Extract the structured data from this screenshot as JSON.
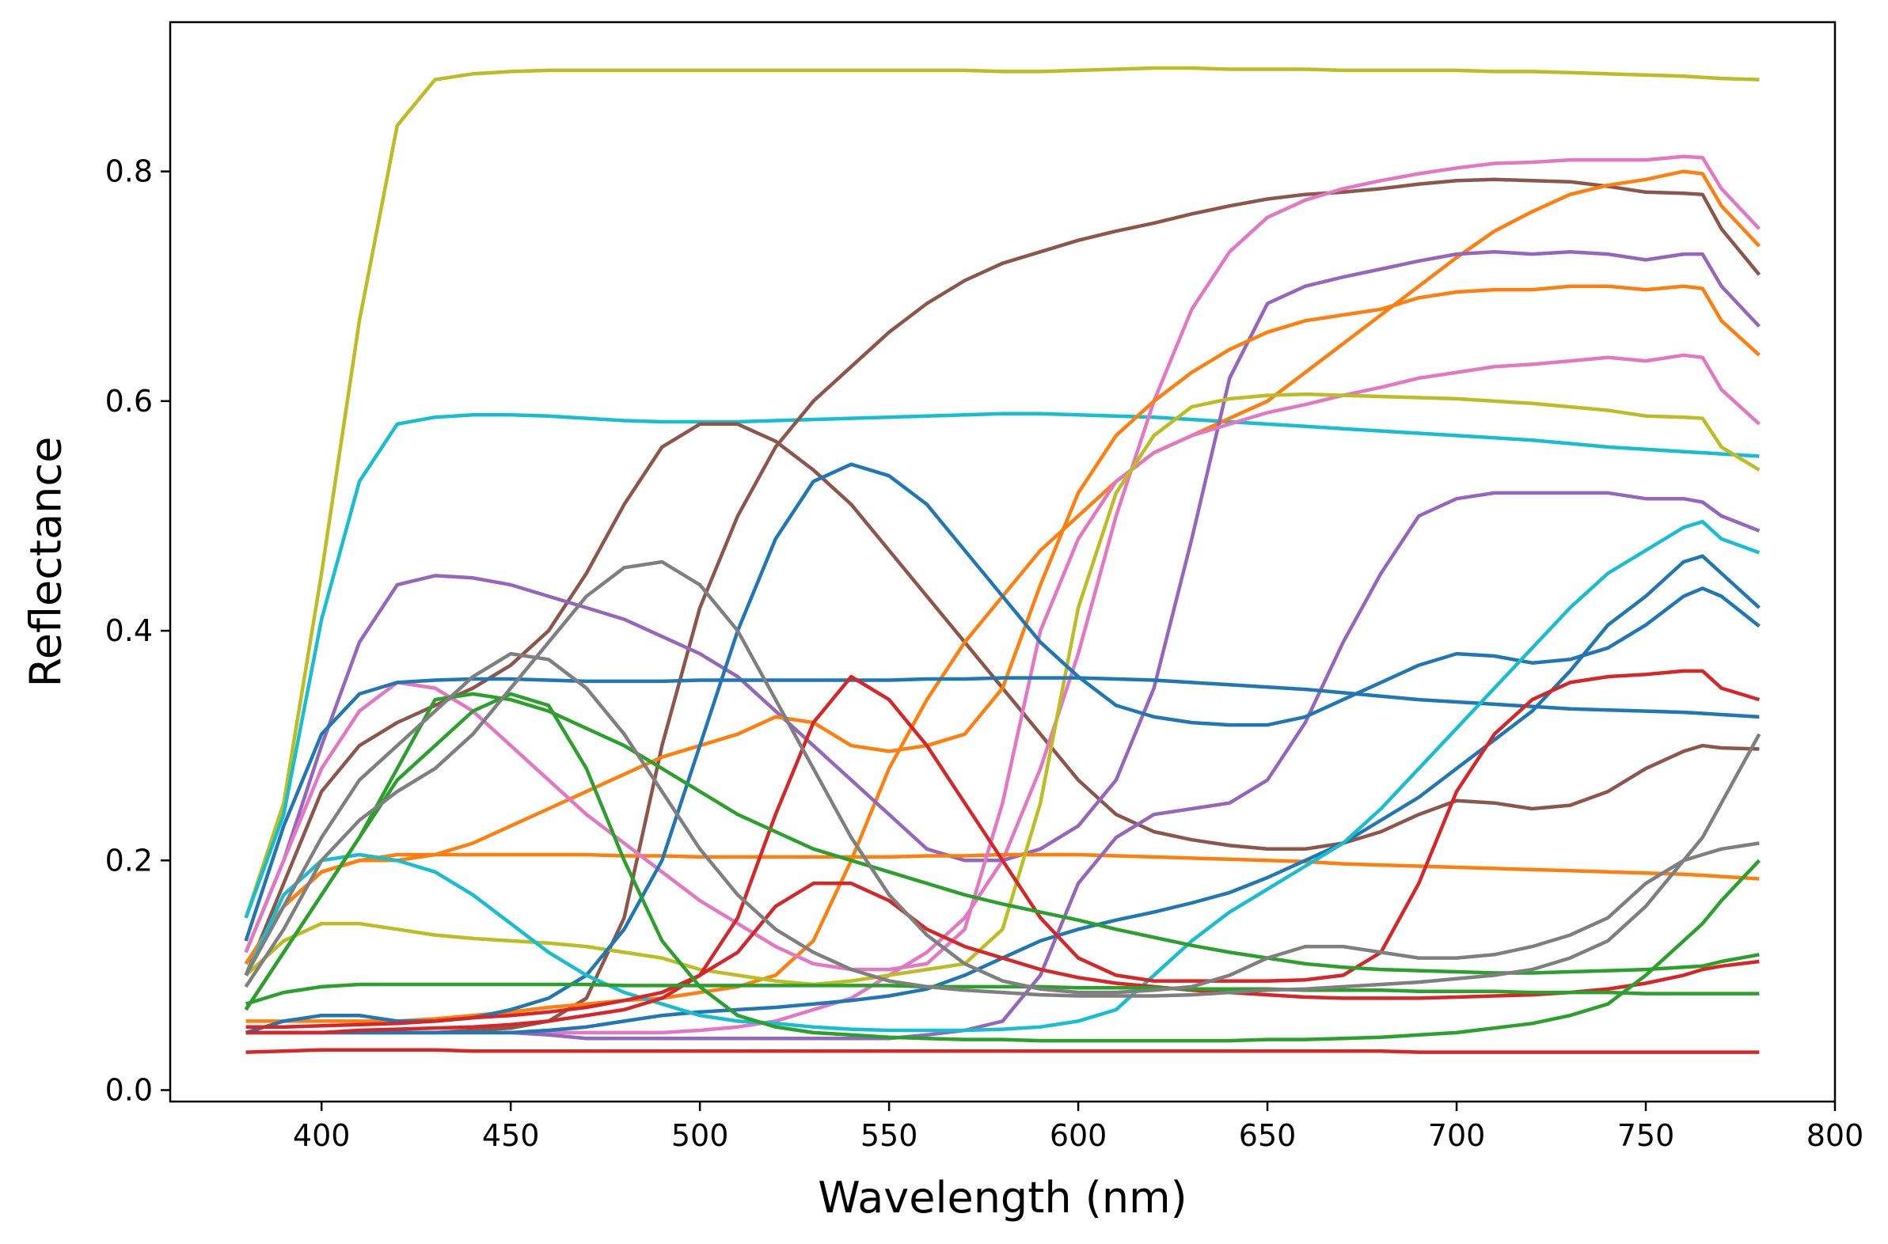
{
  "chart_data": {
    "type": "line",
    "xlabel": "Wavelength (nm)",
    "ylabel": "Reflectance",
    "xlim": [
      360,
      800
    ],
    "ylim": [
      -0.01,
      0.93
    ],
    "xticks": [
      400,
      450,
      500,
      550,
      600,
      650,
      700,
      750,
      800
    ],
    "xtick_labels": [
      "400",
      "450",
      "500",
      "550",
      "600",
      "650",
      "700",
      "750",
      "800"
    ],
    "yticks": [
      0.0,
      0.2,
      0.4,
      0.6,
      0.8
    ],
    "ytick_labels": [
      "0.0",
      "0.2",
      "0.4",
      "0.6",
      "0.8"
    ],
    "grid": false,
    "legend": "none",
    "x": [
      380,
      390,
      400,
      410,
      420,
      430,
      440,
      450,
      460,
      470,
      480,
      490,
      500,
      510,
      520,
      530,
      540,
      550,
      560,
      570,
      580,
      590,
      600,
      610,
      620,
      630,
      640,
      650,
      660,
      670,
      680,
      690,
      700,
      710,
      720,
      730,
      740,
      750,
      760,
      765,
      770,
      780
    ],
    "series": [
      {
        "color": "#bcbd22",
        "values": [
          0.15,
          0.25,
          0.45,
          0.67,
          0.84,
          0.88,
          0.885,
          0.887,
          0.888,
          0.888,
          0.888,
          0.888,
          0.888,
          0.888,
          0.888,
          0.888,
          0.888,
          0.888,
          0.888,
          0.888,
          0.887,
          0.887,
          0.888,
          0.889,
          0.89,
          0.89,
          0.889,
          0.889,
          0.889,
          0.888,
          0.888,
          0.888,
          0.888,
          0.887,
          0.887,
          0.886,
          0.885,
          0.884,
          0.883,
          0.882,
          0.881,
          0.88
        ]
      },
      {
        "color": "#17becf",
        "values": [
          0.15,
          0.24,
          0.41,
          0.53,
          0.58,
          0.586,
          0.588,
          0.588,
          0.587,
          0.585,
          0.583,
          0.582,
          0.582,
          0.582,
          0.583,
          0.584,
          0.585,
          0.586,
          0.587,
          0.588,
          0.589,
          0.589,
          0.588,
          0.587,
          0.586,
          0.584,
          0.582,
          0.58,
          0.578,
          0.576,
          0.574,
          0.572,
          0.57,
          0.568,
          0.566,
          0.563,
          0.56,
          0.558,
          0.556,
          0.555,
          0.554,
          0.552
        ]
      },
      {
        "color": "#8c564b",
        "values": [
          0.1,
          0.18,
          0.26,
          0.3,
          0.32,
          0.335,
          0.35,
          0.37,
          0.4,
          0.45,
          0.51,
          0.56,
          0.58,
          0.58,
          0.565,
          0.54,
          0.51,
          0.47,
          0.43,
          0.39,
          0.35,
          0.31,
          0.27,
          0.24,
          0.225,
          0.218,
          0.213,
          0.21,
          0.21,
          0.215,
          0.225,
          0.24,
          0.252,
          0.25,
          0.245,
          0.248,
          0.26,
          0.28,
          0.295,
          0.3,
          0.298,
          0.297
        ]
      },
      {
        "color": "#8c564b",
        "values": [
          0.05,
          0.05,
          0.05,
          0.05,
          0.05,
          0.05,
          0.052,
          0.054,
          0.06,
          0.08,
          0.15,
          0.3,
          0.42,
          0.5,
          0.56,
          0.6,
          0.63,
          0.66,
          0.685,
          0.705,
          0.72,
          0.73,
          0.74,
          0.748,
          0.755,
          0.763,
          0.77,
          0.776,
          0.78,
          0.782,
          0.785,
          0.789,
          0.792,
          0.793,
          0.792,
          0.791,
          0.787,
          0.782,
          0.781,
          0.78,
          0.75,
          0.71
        ]
      },
      {
        "color": "#e377c2",
        "values": [
          0.05,
          0.05,
          0.05,
          0.05,
          0.05,
          0.05,
          0.05,
          0.05,
          0.05,
          0.05,
          0.05,
          0.05,
          0.052,
          0.055,
          0.06,
          0.07,
          0.08,
          0.1,
          0.12,
          0.15,
          0.2,
          0.28,
          0.38,
          0.5,
          0.6,
          0.68,
          0.73,
          0.76,
          0.775,
          0.785,
          0.792,
          0.798,
          0.803,
          0.807,
          0.808,
          0.81,
          0.81,
          0.81,
          0.813,
          0.812,
          0.785,
          0.75
        ]
      },
      {
        "color": "#ff7f0e",
        "values": [
          0.06,
          0.06,
          0.06,
          0.06,
          0.06,
          0.062,
          0.065,
          0.068,
          0.072,
          0.075,
          0.078,
          0.08,
          0.085,
          0.09,
          0.1,
          0.13,
          0.2,
          0.28,
          0.34,
          0.39,
          0.43,
          0.47,
          0.5,
          0.53,
          0.555,
          0.57,
          0.585,
          0.6,
          0.625,
          0.65,
          0.675,
          0.7,
          0.725,
          0.748,
          0.765,
          0.78,
          0.788,
          0.793,
          0.8,
          0.798,
          0.77,
          0.735
        ]
      },
      {
        "color": "#9467bd",
        "values": [
          0.12,
          0.2,
          0.3,
          0.39,
          0.44,
          0.448,
          0.446,
          0.44,
          0.43,
          0.42,
          0.41,
          0.395,
          0.38,
          0.36,
          0.33,
          0.3,
          0.27,
          0.24,
          0.21,
          0.2,
          0.2,
          0.21,
          0.23,
          0.27,
          0.35,
          0.48,
          0.62,
          0.685,
          0.7,
          0.708,
          0.715,
          0.722,
          0.728,
          0.73,
          0.728,
          0.73,
          0.728,
          0.723,
          0.728,
          0.728,
          0.7,
          0.665
        ]
      },
      {
        "color": "#ff7f0e",
        "values": [
          0.11,
          0.16,
          0.19,
          0.2,
          0.205,
          0.205,
          0.205,
          0.205,
          0.205,
          0.205,
          0.204,
          0.204,
          0.203,
          0.203,
          0.203,
          0.203,
          0.203,
          0.203,
          0.204,
          0.204,
          0.205,
          0.205,
          0.205,
          0.204,
          0.203,
          0.202,
          0.201,
          0.2,
          0.199,
          0.197,
          0.196,
          0.195,
          0.194,
          0.193,
          0.192,
          0.191,
          0.19,
          0.189,
          0.188,
          0.187,
          0.186,
          0.184
        ]
      },
      {
        "color": "#ff7f0e",
        "values": [
          0.11,
          0.16,
          0.19,
          0.2,
          0.2,
          0.205,
          0.215,
          0.23,
          0.245,
          0.26,
          0.275,
          0.29,
          0.3,
          0.31,
          0.325,
          0.32,
          0.3,
          0.295,
          0.3,
          0.31,
          0.35,
          0.44,
          0.52,
          0.57,
          0.6,
          0.625,
          0.645,
          0.66,
          0.67,
          0.675,
          0.68,
          0.69,
          0.695,
          0.697,
          0.697,
          0.7,
          0.7,
          0.697,
          0.7,
          0.698,
          0.67,
          0.64
        ]
      },
      {
        "color": "#e377c2",
        "values": [
          0.12,
          0.2,
          0.28,
          0.33,
          0.355,
          0.35,
          0.33,
          0.3,
          0.27,
          0.24,
          0.215,
          0.19,
          0.165,
          0.145,
          0.125,
          0.11,
          0.105,
          0.105,
          0.11,
          0.14,
          0.25,
          0.4,
          0.48,
          0.53,
          0.555,
          0.57,
          0.58,
          0.59,
          0.597,
          0.605,
          0.612,
          0.62,
          0.625,
          0.63,
          0.632,
          0.635,
          0.638,
          0.635,
          0.64,
          0.638,
          0.61,
          0.58
        ]
      },
      {
        "color": "#bcbd22",
        "values": [
          0.1,
          0.13,
          0.145,
          0.145,
          0.14,
          0.135,
          0.132,
          0.13,
          0.128,
          0.125,
          0.12,
          0.115,
          0.105,
          0.1,
          0.095,
          0.092,
          0.095,
          0.1,
          0.105,
          0.11,
          0.14,
          0.25,
          0.42,
          0.52,
          0.57,
          0.595,
          0.602,
          0.605,
          0.606,
          0.605,
          0.604,
          0.603,
          0.602,
          0.6,
          0.598,
          0.595,
          0.592,
          0.587,
          0.586,
          0.585,
          0.56,
          0.54
        ]
      },
      {
        "color": "#9467bd",
        "values": [
          0.05,
          0.05,
          0.05,
          0.05,
          0.05,
          0.05,
          0.05,
          0.05,
          0.048,
          0.045,
          0.045,
          0.045,
          0.045,
          0.045,
          0.045,
          0.045,
          0.045,
          0.045,
          0.048,
          0.052,
          0.06,
          0.1,
          0.18,
          0.22,
          0.24,
          0.245,
          0.25,
          0.27,
          0.32,
          0.39,
          0.45,
          0.5,
          0.515,
          0.52,
          0.52,
          0.52,
          0.52,
          0.515,
          0.515,
          0.512,
          0.5,
          0.487
        ]
      },
      {
        "color": "#1f77b4",
        "values": [
          0.13,
          0.23,
          0.31,
          0.345,
          0.355,
          0.357,
          0.358,
          0.358,
          0.357,
          0.356,
          0.356,
          0.356,
          0.357,
          0.357,
          0.357,
          0.357,
          0.357,
          0.357,
          0.358,
          0.358,
          0.359,
          0.359,
          0.359,
          0.358,
          0.357,
          0.355,
          0.353,
          0.351,
          0.349,
          0.346,
          0.343,
          0.34,
          0.338,
          0.336,
          0.334,
          0.332,
          0.331,
          0.33,
          0.329,
          0.328,
          0.327,
          0.325
        ]
      },
      {
        "color": "#1f77b4",
        "values": [
          0.05,
          0.06,
          0.065,
          0.065,
          0.06,
          0.06,
          0.063,
          0.07,
          0.08,
          0.1,
          0.14,
          0.2,
          0.3,
          0.4,
          0.48,
          0.53,
          0.545,
          0.535,
          0.51,
          0.47,
          0.43,
          0.39,
          0.36,
          0.335,
          0.325,
          0.32,
          0.318,
          0.318,
          0.325,
          0.34,
          0.355,
          0.37,
          0.38,
          0.378,
          0.372,
          0.375,
          0.385,
          0.405,
          0.43,
          0.437,
          0.43,
          0.404
        ]
      },
      {
        "color": "#1f77b4",
        "values": [
          0.05,
          0.05,
          0.05,
          0.05,
          0.05,
          0.05,
          0.05,
          0.05,
          0.052,
          0.055,
          0.06,
          0.065,
          0.068,
          0.07,
          0.072,
          0.075,
          0.078,
          0.082,
          0.088,
          0.1,
          0.115,
          0.13,
          0.14,
          0.148,
          0.155,
          0.163,
          0.172,
          0.185,
          0.2,
          0.215,
          0.235,
          0.255,
          0.28,
          0.305,
          0.33,
          0.365,
          0.405,
          0.43,
          0.46,
          0.465,
          0.45,
          0.42
        ]
      },
      {
        "color": "#17becf",
        "values": [
          0.1,
          0.17,
          0.2,
          0.205,
          0.2,
          0.19,
          0.17,
          0.145,
          0.12,
          0.1,
          0.085,
          0.075,
          0.065,
          0.06,
          0.058,
          0.055,
          0.053,
          0.052,
          0.052,
          0.052,
          0.053,
          0.055,
          0.06,
          0.07,
          0.1,
          0.13,
          0.155,
          0.175,
          0.195,
          0.215,
          0.245,
          0.28,
          0.315,
          0.35,
          0.385,
          0.42,
          0.45,
          0.47,
          0.49,
          0.495,
          0.48,
          0.468
        ]
      },
      {
        "color": "#d62728",
        "values": [
          0.033,
          0.034,
          0.035,
          0.035,
          0.035,
          0.035,
          0.034,
          0.034,
          0.034,
          0.034,
          0.034,
          0.034,
          0.034,
          0.034,
          0.034,
          0.034,
          0.034,
          0.034,
          0.034,
          0.034,
          0.034,
          0.034,
          0.034,
          0.034,
          0.034,
          0.034,
          0.034,
          0.034,
          0.034,
          0.034,
          0.034,
          0.033,
          0.033,
          0.033,
          0.033,
          0.033,
          0.033,
          0.033,
          0.033,
          0.033,
          0.033,
          0.033
        ]
      },
      {
        "color": "#d62728",
        "values": [
          0.05,
          0.05,
          0.05,
          0.052,
          0.053,
          0.054,
          0.055,
          0.057,
          0.06,
          0.065,
          0.07,
          0.08,
          0.1,
          0.15,
          0.24,
          0.32,
          0.36,
          0.34,
          0.3,
          0.25,
          0.2,
          0.15,
          0.115,
          0.1,
          0.095,
          0.095,
          0.095,
          0.095,
          0.096,
          0.1,
          0.12,
          0.18,
          0.26,
          0.31,
          0.34,
          0.355,
          0.36,
          0.362,
          0.365,
          0.365,
          0.35,
          0.34
        ]
      },
      {
        "color": "#d62728",
        "values": [
          0.055,
          0.055,
          0.056,
          0.057,
          0.058,
          0.06,
          0.063,
          0.065,
          0.068,
          0.072,
          0.078,
          0.085,
          0.1,
          0.12,
          0.16,
          0.18,
          0.18,
          0.165,
          0.14,
          0.125,
          0.115,
          0.105,
          0.098,
          0.093,
          0.09,
          0.087,
          0.085,
          0.083,
          0.081,
          0.08,
          0.08,
          0.08,
          0.081,
          0.082,
          0.083,
          0.085,
          0.088,
          0.093,
          0.1,
          0.105,
          0.108,
          0.112
        ]
      },
      {
        "color": "#2ca02c",
        "values": [
          0.07,
          0.12,
          0.17,
          0.22,
          0.28,
          0.34,
          0.345,
          0.34,
          0.33,
          0.315,
          0.3,
          0.28,
          0.26,
          0.24,
          0.225,
          0.21,
          0.2,
          0.19,
          0.18,
          0.17,
          0.162,
          0.155,
          0.148,
          0.14,
          0.133,
          0.126,
          0.12,
          0.115,
          0.11,
          0.107,
          0.105,
          0.104,
          0.103,
          0.102,
          0.102,
          0.103,
          0.104,
          0.105,
          0.107,
          0.108,
          0.112,
          0.118
        ]
      },
      {
        "color": "#2ca02c",
        "values": [
          0.07,
          0.12,
          0.17,
          0.22,
          0.27,
          0.3,
          0.33,
          0.345,
          0.335,
          0.28,
          0.2,
          0.13,
          0.09,
          0.065,
          0.055,
          0.05,
          0.048,
          0.046,
          0.045,
          0.044,
          0.044,
          0.043,
          0.043,
          0.043,
          0.043,
          0.043,
          0.043,
          0.044,
          0.044,
          0.045,
          0.046,
          0.048,
          0.05,
          0.054,
          0.058,
          0.065,
          0.075,
          0.1,
          0.13,
          0.145,
          0.165,
          0.2
        ]
      },
      {
        "color": "#2ca02c",
        "values": [
          0.075,
          0.085,
          0.09,
          0.092,
          0.092,
          0.092,
          0.092,
          0.092,
          0.092,
          0.092,
          0.091,
          0.091,
          0.091,
          0.091,
          0.091,
          0.091,
          0.091,
          0.091,
          0.09,
          0.09,
          0.09,
          0.09,
          0.089,
          0.089,
          0.089,
          0.088,
          0.088,
          0.088,
          0.087,
          0.087,
          0.087,
          0.086,
          0.086,
          0.086,
          0.085,
          0.085,
          0.085,
          0.084,
          0.084,
          0.084,
          0.084,
          0.084
        ]
      },
      {
        "color": "#7f7f7f",
        "values": [
          0.1,
          0.16,
          0.22,
          0.27,
          0.3,
          0.33,
          0.36,
          0.38,
          0.375,
          0.35,
          0.31,
          0.26,
          0.21,
          0.17,
          0.14,
          0.12,
          0.105,
          0.095,
          0.09,
          0.087,
          0.085,
          0.083,
          0.082,
          0.082,
          0.082,
          0.083,
          0.085,
          0.087,
          0.088,
          0.09,
          0.092,
          0.094,
          0.097,
          0.1,
          0.105,
          0.115,
          0.13,
          0.16,
          0.2,
          0.22,
          0.25,
          0.31
        ]
      },
      {
        "color": "#7f7f7f",
        "values": [
          0.09,
          0.14,
          0.2,
          0.235,
          0.26,
          0.28,
          0.31,
          0.35,
          0.39,
          0.43,
          0.455,
          0.46,
          0.44,
          0.4,
          0.34,
          0.28,
          0.22,
          0.17,
          0.135,
          0.11,
          0.095,
          0.088,
          0.085,
          0.085,
          0.087,
          0.09,
          0.1,
          0.115,
          0.125,
          0.125,
          0.12,
          0.115,
          0.115,
          0.118,
          0.125,
          0.135,
          0.15,
          0.18,
          0.2,
          0.205,
          0.21,
          0.215
        ]
      }
    ]
  }
}
